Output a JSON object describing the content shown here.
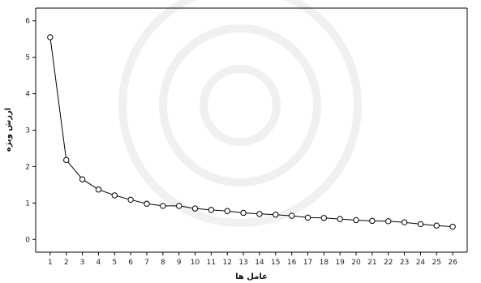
{
  "chart_data": {
    "type": "line",
    "title": "",
    "xlabel": "عامل ها",
    "ylabel": "ارزش ویژه",
    "x": [
      1,
      2,
      3,
      4,
      5,
      6,
      7,
      8,
      9,
      10,
      11,
      12,
      13,
      14,
      15,
      16,
      17,
      18,
      19,
      20,
      21,
      22,
      23,
      24,
      25,
      26
    ],
    "series": [
      {
        "values": [
          5.55,
          2.18,
          1.65,
          1.37,
          1.21,
          1.09,
          0.98,
          0.92,
          0.92,
          0.85,
          0.81,
          0.78,
          0.73,
          0.7,
          0.68,
          0.65,
          0.6,
          0.59,
          0.56,
          0.53,
          0.51,
          0.5,
          0.47,
          0.42,
          0.38,
          0.35
        ]
      }
    ],
    "xlim": [
      0.1,
      26.9
    ],
    "ylim": [
      -0.35,
      6.35
    ],
    "y_ticks": [
      0,
      1,
      2,
      3,
      4,
      5,
      6
    ],
    "grid": false,
    "legend": "none",
    "colors": {
      "line": "#000000",
      "marker_fill": "#ffffff",
      "marker_stroke": "#000000",
      "axis": "#000000"
    }
  }
}
